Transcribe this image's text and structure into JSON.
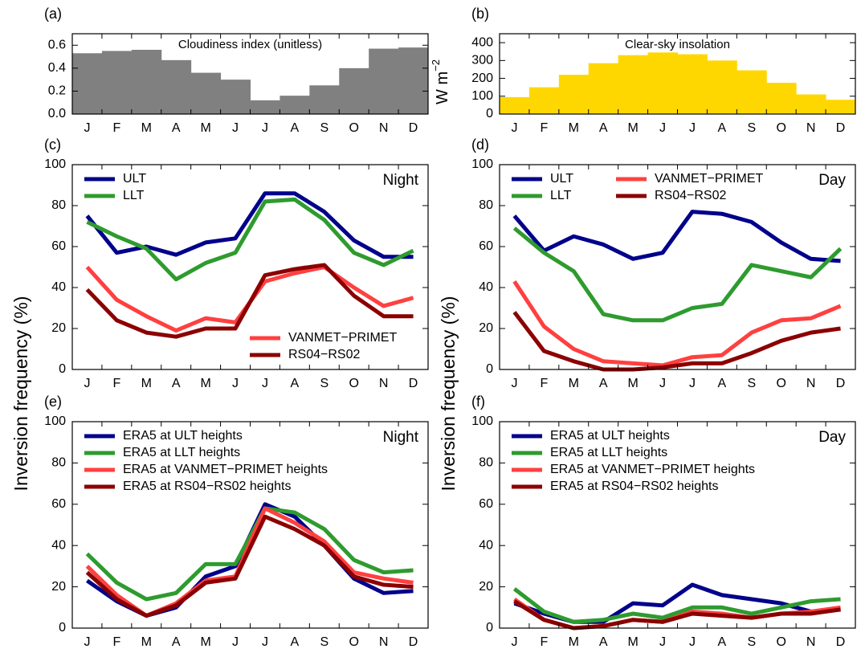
{
  "chart_data": [
    {
      "type": "bar",
      "panel": "(a)",
      "title": "Cloudiness index (unitless)",
      "categories": [
        "J",
        "F",
        "M",
        "A",
        "M",
        "J",
        "J",
        "A",
        "S",
        "O",
        "N",
        "D"
      ],
      "values": [
        0.53,
        0.55,
        0.56,
        0.47,
        0.36,
        0.3,
        0.12,
        0.16,
        0.25,
        0.4,
        0.57,
        0.58
      ],
      "color": "#808080",
      "ylim": [
        0,
        0.7
      ],
      "yticks": [
        {
          "value": 0,
          "label": "0.0"
        },
        0.2,
        0.4,
        0.6
      ]
    },
    {
      "type": "bar",
      "panel": "(b)",
      "title": "Clear-sky insolation",
      "ylabel": "W m",
      "ylabel_superscript": "−2",
      "categories": [
        "J",
        "F",
        "M",
        "A",
        "M",
        "J",
        "J",
        "A",
        "S",
        "O",
        "N",
        "D"
      ],
      "values": [
        95,
        150,
        220,
        285,
        330,
        345,
        335,
        300,
        245,
        175,
        110,
        80
      ],
      "color": "#ffd700",
      "ylim": [
        0,
        450
      ],
      "yticks": [
        0,
        100,
        200,
        300,
        400
      ]
    },
    {
      "type": "line",
      "panel": "(c)",
      "annotation": "Night",
      "ylabel": "Inversion frequency (%)",
      "categories": [
        "J",
        "F",
        "M",
        "A",
        "M",
        "J",
        "J",
        "A",
        "S",
        "O",
        "N",
        "D"
      ],
      "ylim": [
        0,
        100
      ],
      "yticks": [
        0,
        20,
        40,
        60,
        80,
        100
      ],
      "legend": [
        "upper left",
        "upper left",
        "lower right",
        "lower right"
      ],
      "series": [
        {
          "name": "ULT",
          "color": "#00008b",
          "values": [
            75,
            57,
            60,
            56,
            62,
            64,
            86,
            86,
            77,
            63,
            55,
            55
          ]
        },
        {
          "name": "LLT",
          "color": "#2e9b2e",
          "values": [
            72,
            65,
            59,
            44,
            52,
            57,
            82,
            83,
            73,
            57,
            51,
            58
          ]
        },
        {
          "name": "VANMET−PRIMET",
          "color": "#ff4040",
          "values": [
            50,
            34,
            26,
            19,
            25,
            23,
            43,
            47,
            50,
            40,
            31,
            35
          ]
        },
        {
          "name": "RS04−RS02",
          "color": "#8b0000",
          "values": [
            39,
            24,
            18,
            16,
            20,
            20,
            46,
            49,
            51,
            36,
            26,
            26
          ]
        }
      ]
    },
    {
      "type": "line",
      "panel": "(d)",
      "annotation": "Day",
      "ylabel": "Inversion frequency (%)",
      "categories": [
        "J",
        "F",
        "M",
        "A",
        "M",
        "J",
        "J",
        "A",
        "S",
        "O",
        "N",
        "D"
      ],
      "ylim": [
        0,
        100
      ],
      "yticks": [
        0,
        20,
        40,
        60,
        80,
        100
      ],
      "legend": "upper left",
      "legend_columns": 2,
      "series": [
        {
          "name": "ULT",
          "color": "#00008b",
          "values": [
            75,
            58,
            65,
            61,
            54,
            57,
            77,
            76,
            72,
            62,
            54,
            53
          ]
        },
        {
          "name": "LLT",
          "color": "#2e9b2e",
          "values": [
            69,
            57,
            48,
            27,
            24,
            24,
            30,
            32,
            51,
            48,
            45,
            59
          ]
        },
        {
          "name": "VANMET−PRIMET",
          "color": "#ff4040",
          "values": [
            43,
            21,
            10,
            4,
            3,
            2,
            6,
            7,
            18,
            24,
            25,
            31
          ]
        },
        {
          "name": "RS04−RS02",
          "color": "#8b0000",
          "values": [
            28,
            9,
            4,
            0,
            0,
            1,
            3,
            3,
            8,
            14,
            18,
            20
          ]
        }
      ]
    },
    {
      "type": "line",
      "panel": "(e)",
      "annotation": "Night",
      "categories": [
        "J",
        "F",
        "M",
        "A",
        "M",
        "J",
        "J",
        "A",
        "S",
        "O",
        "N",
        "D"
      ],
      "ylim": [
        0,
        100
      ],
      "yticks": [
        0,
        20,
        40,
        60,
        80,
        100
      ],
      "legend": "upper left",
      "series": [
        {
          "name": "ERA5 at ULT heights",
          "color": "#00008b",
          "values": [
            23,
            13,
            6,
            10,
            25,
            30,
            60,
            54,
            40,
            24,
            17,
            18
          ]
        },
        {
          "name": "ERA5 at LLT heights",
          "color": "#2e9b2e",
          "values": [
            36,
            22,
            14,
            17,
            31,
            31,
            58,
            56,
            48,
            33,
            27,
            28
          ]
        },
        {
          "name": "ERA5 at VANMET−PRIMET heights",
          "color": "#ff4040",
          "values": [
            30,
            16,
            6,
            12,
            23,
            25,
            58,
            51,
            42,
            27,
            24,
            22
          ]
        },
        {
          "name": "ERA5 at RS04−RS02 heights",
          "color": "#8b0000",
          "values": [
            27,
            14,
            6,
            11,
            22,
            24,
            54,
            48,
            40,
            25,
            21,
            20
          ]
        }
      ]
    },
    {
      "type": "line",
      "panel": "(f)",
      "annotation": "Day",
      "categories": [
        "J",
        "F",
        "M",
        "A",
        "M",
        "J",
        "J",
        "A",
        "S",
        "O",
        "N",
        "D"
      ],
      "ylim": [
        0,
        100
      ],
      "yticks": [
        0,
        20,
        40,
        60,
        80,
        100
      ],
      "legend": "upper left",
      "series": [
        {
          "name": "ERA5 at ULT heights",
          "color": "#00008b",
          "values": [
            12,
            7,
            3,
            3,
            12,
            11,
            21,
            16,
            14,
            12,
            8,
            9
          ]
        },
        {
          "name": "ERA5 at LLT heights",
          "color": "#2e9b2e",
          "values": [
            19,
            8,
            3,
            4,
            7,
            5,
            10,
            10,
            7,
            10,
            13,
            14
          ]
        },
        {
          "name": "ERA5 at VANMET−PRIMET heights",
          "color": "#ff4040",
          "values": [
            14,
            4,
            0,
            1,
            4,
            3,
            8,
            7,
            5,
            7,
            8,
            10
          ]
        },
        {
          "name": "ERA5 at RS04−RS02 heights",
          "color": "#8b0000",
          "values": [
            13,
            4,
            0,
            1,
            4,
            3,
            7,
            6,
            5,
            7,
            7,
            9
          ]
        }
      ]
    }
  ]
}
